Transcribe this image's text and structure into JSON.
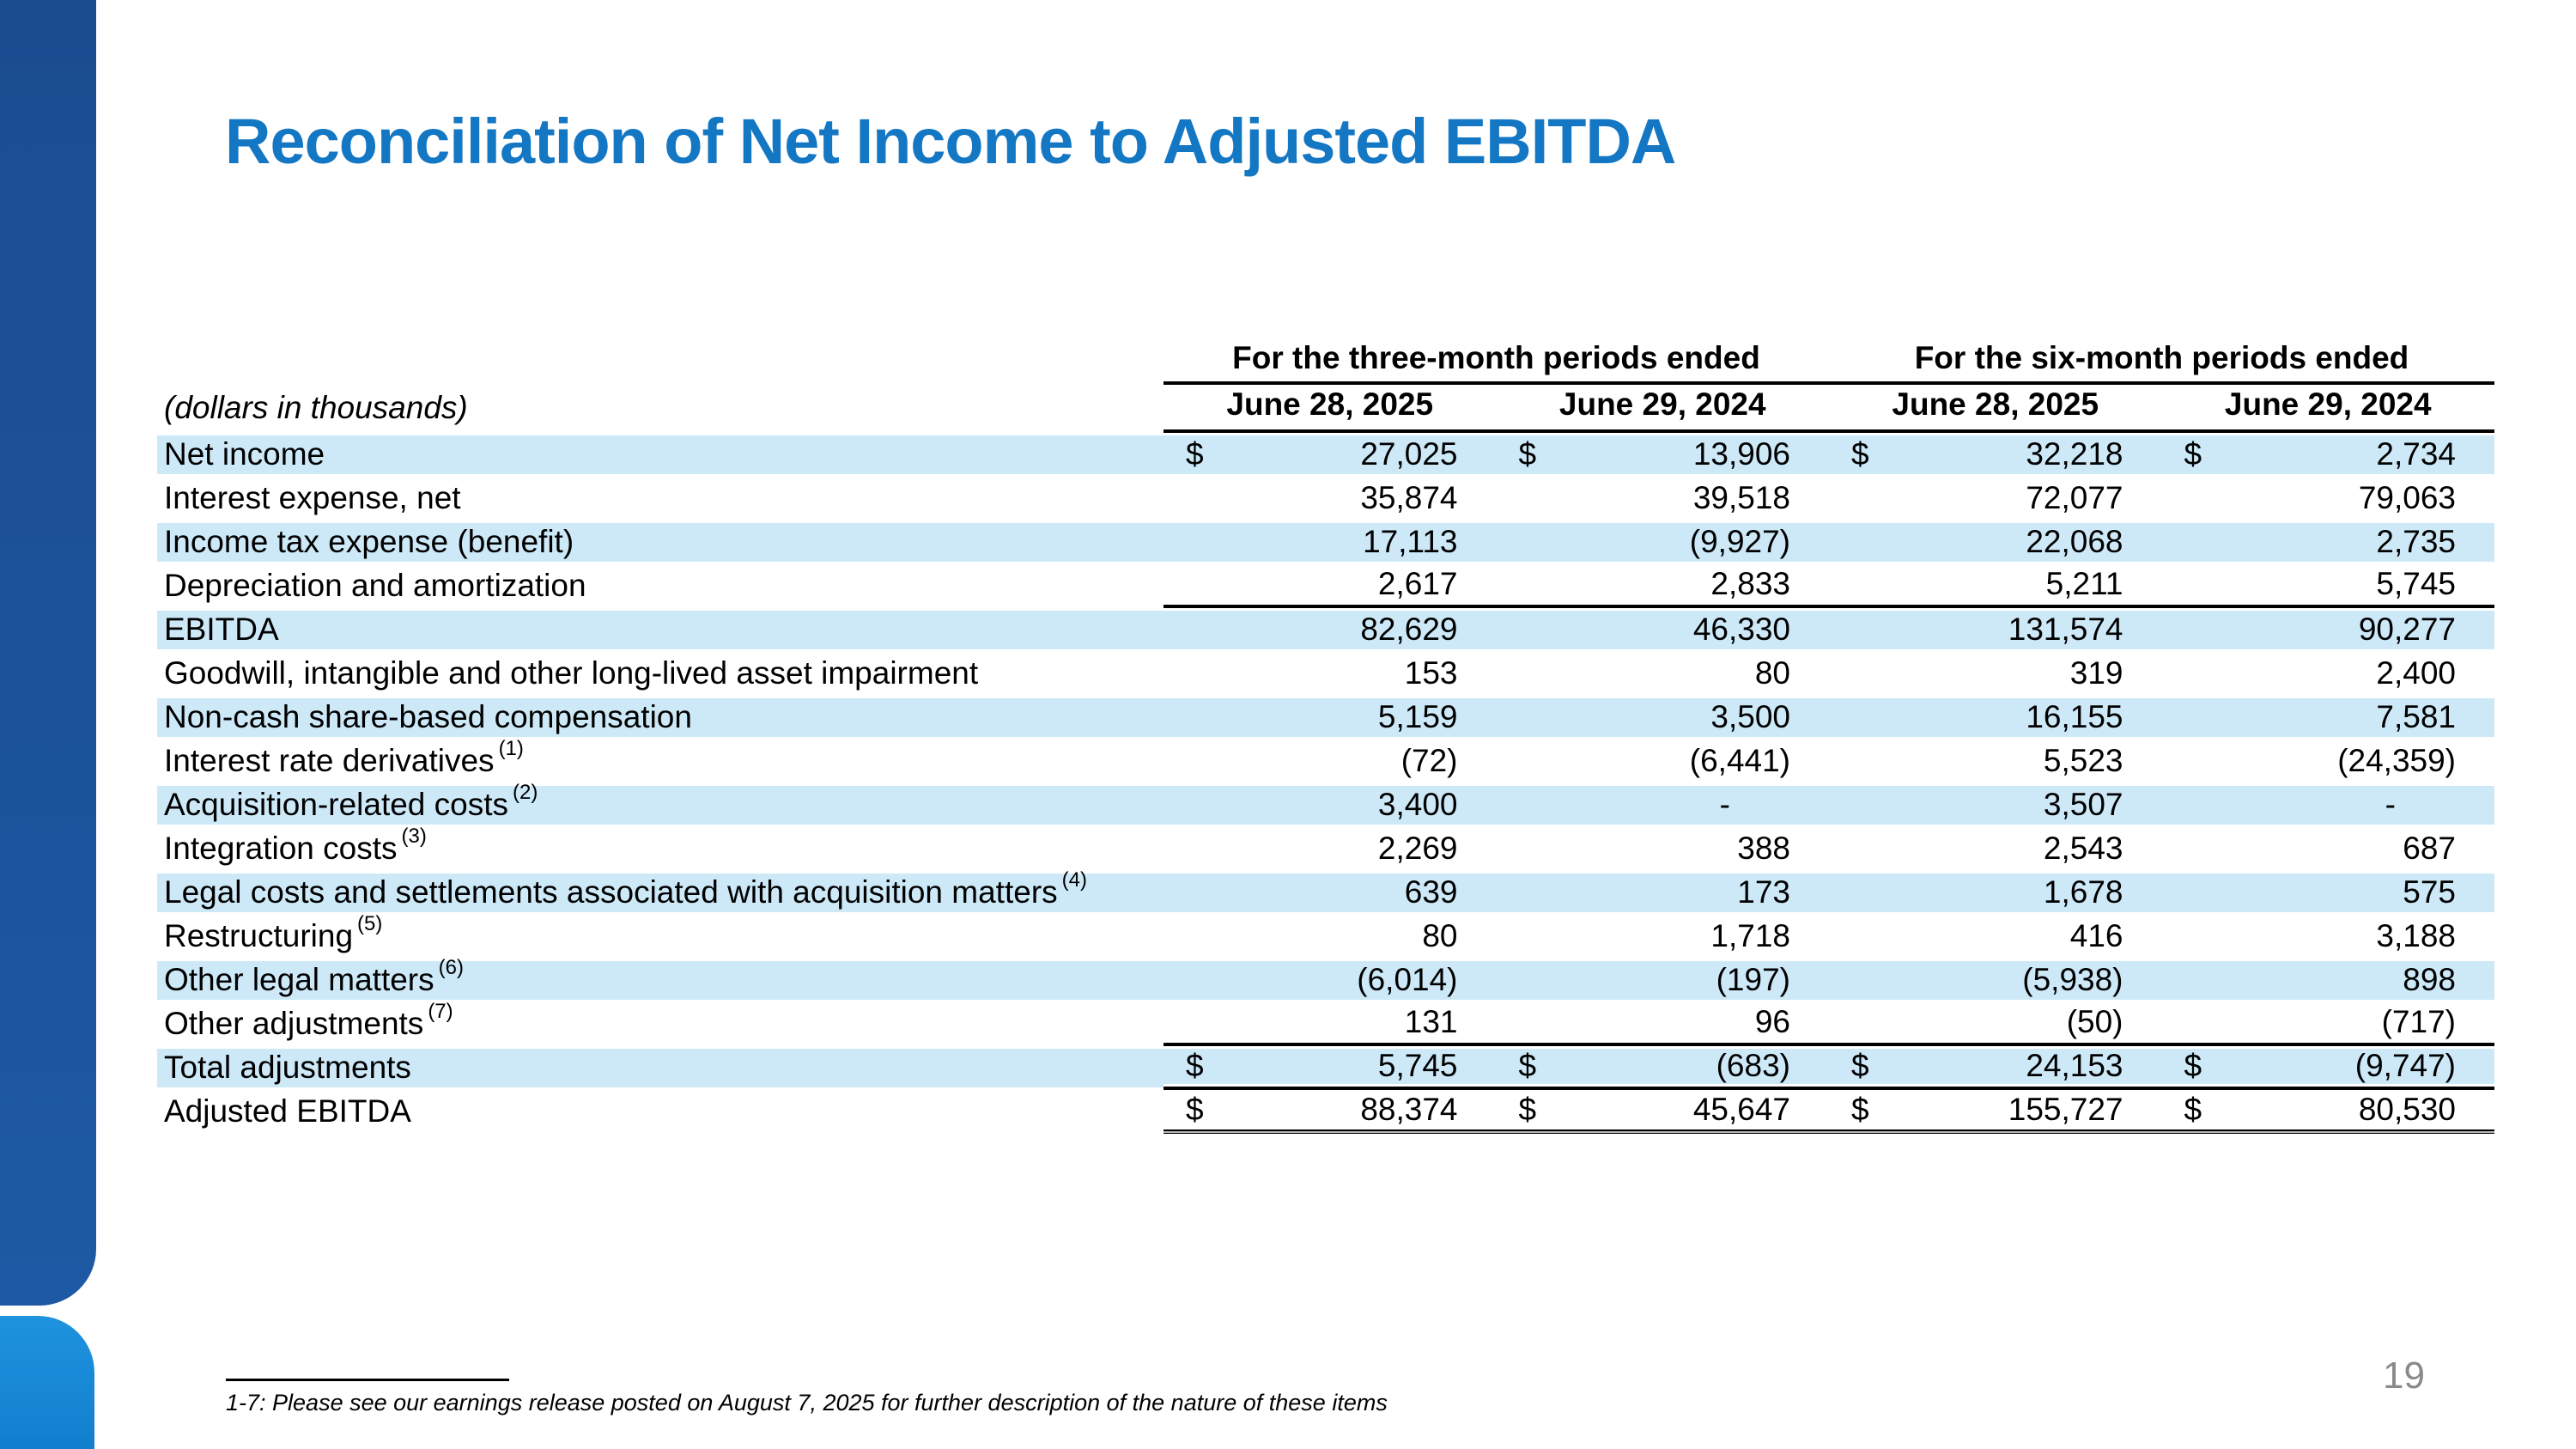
{
  "slide": {
    "title": "Reconciliation of Net Income to Adjusted EBITDA",
    "page_number": "19",
    "footnote": "1-7: Please see our earnings release posted on August 7, 2025 for further description of the nature of these items"
  },
  "table": {
    "units_label": "(dollars in thousands)",
    "currency_symbol": "$",
    "group_headers": [
      "For the three-month periods ended",
      "For the six-month periods ended"
    ],
    "column_headers": [
      "June 28, 2025",
      "June 29, 2024",
      "June 28, 2025",
      "June 29, 2024"
    ],
    "rows": [
      {
        "label": "Net income",
        "sup": "",
        "dollar": true,
        "values": [
          "27,025",
          "13,906",
          "32,218",
          "2,734"
        ],
        "shaded": true,
        "border": "none"
      },
      {
        "label": "Interest expense, net",
        "sup": "",
        "dollar": false,
        "values": [
          "35,874",
          "39,518",
          "72,077",
          "79,063"
        ],
        "shaded": false,
        "border": "none"
      },
      {
        "label": "Income tax expense (benefit)",
        "sup": "",
        "dollar": false,
        "values": [
          "17,113",
          "(9,927)",
          "22,068",
          "2,735"
        ],
        "shaded": true,
        "border": "none"
      },
      {
        "label": "Depreciation and amortization",
        "sup": "",
        "dollar": false,
        "values": [
          "2,617",
          "2,833",
          "5,211",
          "5,745"
        ],
        "shaded": false,
        "border": "bottom"
      },
      {
        "label": "EBITDA",
        "sup": "",
        "dollar": false,
        "values": [
          "82,629",
          "46,330",
          "131,574",
          "90,277"
        ],
        "shaded": true,
        "border": "none"
      },
      {
        "label": "Goodwill, intangible and other long-lived asset impairment",
        "sup": "",
        "dollar": false,
        "values": [
          "153",
          "80",
          "319",
          "2,400"
        ],
        "shaded": false,
        "border": "none"
      },
      {
        "label": "Non-cash share-based compensation",
        "sup": "",
        "dollar": false,
        "values": [
          "5,159",
          "3,500",
          "16,155",
          "7,581"
        ],
        "shaded": true,
        "border": "none"
      },
      {
        "label": "Interest rate derivatives",
        "sup": "(1)",
        "dollar": false,
        "values": [
          "(72)",
          "(6,441)",
          "5,523",
          "(24,359)"
        ],
        "shaded": false,
        "border": "none"
      },
      {
        "label": "Acquisition-related costs",
        "sup": "(2)",
        "dollar": false,
        "values": [
          "3,400",
          "-",
          "3,507",
          "-"
        ],
        "shaded": true,
        "border": "none"
      },
      {
        "label": "Integration costs",
        "sup": "(3)",
        "dollar": false,
        "values": [
          "2,269",
          "388",
          "2,543",
          "687"
        ],
        "shaded": false,
        "border": "none"
      },
      {
        "label": "Legal costs and settlements associated with acquisition matters",
        "sup": "(4)",
        "dollar": false,
        "values": [
          "639",
          "173",
          "1,678",
          "575"
        ],
        "shaded": true,
        "border": "none"
      },
      {
        "label": "Restructuring",
        "sup": "(5)",
        "dollar": false,
        "values": [
          "80",
          "1,718",
          "416",
          "3,188"
        ],
        "shaded": false,
        "border": "none"
      },
      {
        "label": "Other legal matters",
        "sup": "(6)",
        "dollar": false,
        "values": [
          "(6,014)",
          "(197)",
          "(5,938)",
          "898"
        ],
        "shaded": true,
        "border": "none"
      },
      {
        "label": "Other adjustments",
        "sup": "(7)",
        "dollar": false,
        "values": [
          "131",
          "96",
          "(50)",
          "(717)"
        ],
        "shaded": false,
        "border": "bottom"
      },
      {
        "label": "Total adjustments",
        "sup": "",
        "dollar": true,
        "values": [
          "5,745",
          "(683)",
          "24,153",
          "(9,747)"
        ],
        "shaded": true,
        "border": "bottom"
      },
      {
        "label": "Adjusted EBITDA",
        "sup": "",
        "dollar": true,
        "values": [
          "88,374",
          "45,647",
          "155,727",
          "80,530"
        ],
        "shaded": false,
        "border": "double"
      }
    ]
  },
  "colors": {
    "sidebar_dark": "#1C4F93",
    "sidebar_light": "#168BD9",
    "title_blue": "#1377C4",
    "row_highlight": "#CDE9F8",
    "page_number_gray": "#8A8A8A"
  }
}
